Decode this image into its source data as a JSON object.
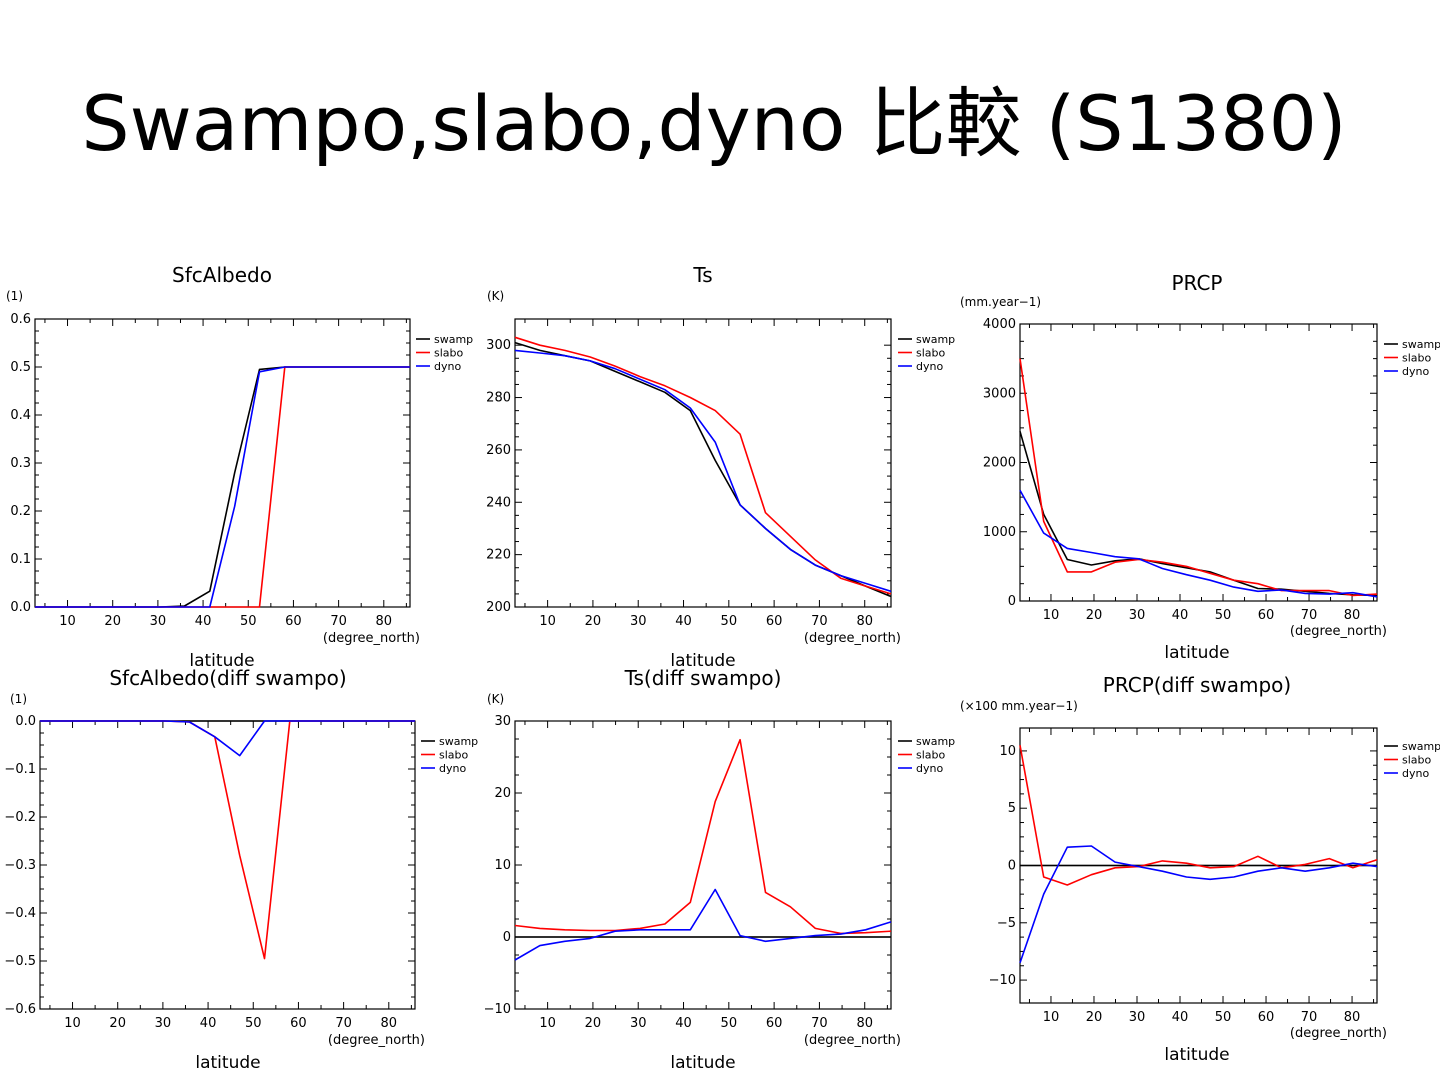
{
  "slide": {
    "title": "Swampo,slabo,dyno 比較 (S1380)"
  },
  "colors": {
    "swamp": "#000000",
    "slabo": "#ff0000",
    "dyno": "#0000ff"
  },
  "chart_data": [
    {
      "type": "line",
      "title": "SfcAlbedo",
      "unit": "(1)",
      "xlabel": "latitude",
      "xunit": "(degree_north)",
      "xlim": [
        2.8,
        85.8
      ],
      "ylim": [
        0,
        0.6
      ],
      "xticks": [
        10,
        20,
        30,
        40,
        50,
        60,
        70,
        80
      ],
      "yticks": [
        0,
        0.1,
        0.2,
        0.3,
        0.4,
        0.5,
        0.6
      ],
      "ytick_labels": [
        "0.0",
        "0.1",
        "0.2",
        "0.3",
        "0.4",
        "0.5",
        "0.6"
      ],
      "zero_line": false,
      "x": [
        2.8,
        8.3,
        13.8,
        19.4,
        24.9,
        30.4,
        35.9,
        41.5,
        47.0,
        52.5,
        58.1,
        63.6,
        69.1,
        74.7,
        80.2,
        85.8
      ],
      "series": [
        {
          "name": "swamp",
          "values": [
            0,
            0,
            0,
            0,
            0,
            0,
            0.002,
            0.033,
            0.28,
            0.495,
            0.5,
            0.5,
            0.5,
            0.5,
            0.5,
            0.5
          ]
        },
        {
          "name": "slabo",
          "values": [
            0,
            0,
            0,
            0,
            0,
            0,
            0,
            0,
            0,
            0,
            0.5,
            0.5,
            0.5,
            0.5,
            0.5,
            0.5
          ]
        },
        {
          "name": "dyno",
          "values": [
            0,
            0,
            0,
            0,
            0,
            0,
            0,
            0,
            0.21,
            0.49,
            0.5,
            0.5,
            0.5,
            0.5,
            0.5,
            0.5
          ]
        }
      ]
    },
    {
      "type": "line",
      "title": "Ts",
      "unit": "(K)",
      "xlabel": "latitude",
      "xunit": "(degree_north)",
      "xlim": [
        2.8,
        85.8
      ],
      "ylim": [
        200,
        310
      ],
      "xticks": [
        10,
        20,
        30,
        40,
        50,
        60,
        70,
        80
      ],
      "yticks": [
        200,
        220,
        240,
        260,
        280,
        300
      ],
      "ytick_labels": [
        "200",
        "220",
        "240",
        "260",
        "280",
        "300"
      ],
      "zero_line": false,
      "x": [
        2.8,
        8.3,
        13.8,
        19.4,
        24.9,
        30.4,
        35.9,
        41.5,
        47.0,
        52.5,
        58.1,
        63.6,
        69.1,
        74.7,
        80.2,
        85.8
      ],
      "series": [
        {
          "name": "swamp",
          "values": [
            301,
            298,
            296,
            294,
            290,
            286,
            282,
            275,
            256,
            239,
            230,
            222,
            216,
            212,
            208,
            204
          ]
        },
        {
          "name": "slabo",
          "values": [
            303,
            300,
            298,
            295.5,
            292,
            288,
            284.5,
            280,
            275,
            266,
            236,
            227,
            218,
            211,
            208,
            205
          ]
        },
        {
          "name": "dyno",
          "values": [
            298,
            297,
            296,
            294,
            291,
            287,
            283,
            276,
            263,
            239,
            230,
            222,
            216,
            212,
            209,
            206
          ]
        }
      ]
    },
    {
      "type": "line",
      "title": "PRCP",
      "unit": "(mm.year−1)",
      "xlabel": "latitude",
      "xunit": "(degree_north)",
      "xlim": [
        2.8,
        85.8
      ],
      "ylim": [
        0,
        4000
      ],
      "xticks": [
        10,
        20,
        30,
        40,
        50,
        60,
        70,
        80
      ],
      "yticks": [
        0,
        1000,
        2000,
        3000,
        4000
      ],
      "ytick_labels": [
        "0",
        "1000",
        "2000",
        "3000",
        "4000"
      ],
      "zero_line": false,
      "x": [
        2.8,
        8.3,
        13.8,
        19.4,
        24.9,
        30.4,
        35.9,
        41.5,
        47.0,
        52.5,
        58.1,
        63.6,
        69.1,
        74.7,
        80.2,
        85.8
      ],
      "series": [
        {
          "name": "swamp",
          "values": [
            2450,
            1250,
            600,
            520,
            580,
            610,
            540,
            480,
            420,
            300,
            180,
            170,
            140,
            110,
            90,
            80
          ]
        },
        {
          "name": "slabo",
          "values": [
            3500,
            1150,
            420,
            420,
            560,
            600,
            560,
            500,
            400,
            300,
            250,
            150,
            150,
            150,
            80,
            100
          ]
        },
        {
          "name": "dyno",
          "values": [
            1600,
            980,
            760,
            700,
            640,
            610,
            470,
            380,
            300,
            200,
            140,
            160,
            110,
            100,
            120,
            60
          ]
        }
      ]
    },
    {
      "type": "line",
      "title": "SfcAlbedo(diff swampo)",
      "unit": "(1)",
      "xlabel": "latitude",
      "xunit": "(degree_north)",
      "xlim": [
        2.8,
        85.8
      ],
      "ylim": [
        -0.6,
        0
      ],
      "xticks": [
        10,
        20,
        30,
        40,
        50,
        60,
        70,
        80
      ],
      "yticks": [
        -0.6,
        -0.5,
        -0.4,
        -0.3,
        -0.2,
        -0.1,
        0
      ],
      "ytick_labels": [
        "−0.6",
        "−0.5",
        "−0.4",
        "−0.3",
        "−0.2",
        "−0.1",
        "0.0"
      ],
      "zero_line": false,
      "x": [
        2.8,
        8.3,
        13.8,
        19.4,
        24.9,
        30.4,
        35.9,
        41.5,
        47.0,
        52.5,
        58.1,
        63.6,
        69.1,
        74.7,
        80.2,
        85.8
      ],
      "series": [
        {
          "name": "swamp",
          "values": [
            0,
            0,
            0,
            0,
            0,
            0,
            0,
            0,
            0,
            0,
            0,
            0,
            0,
            0,
            0,
            0
          ]
        },
        {
          "name": "slabo",
          "values": [
            0,
            0,
            0,
            0,
            0,
            0,
            -0.002,
            -0.033,
            -0.28,
            -0.495,
            0,
            0,
            0,
            0,
            0,
            0
          ]
        },
        {
          "name": "dyno",
          "values": [
            0,
            0,
            0,
            0,
            0,
            0,
            -0.002,
            -0.033,
            -0.072,
            0,
            0,
            0,
            0,
            0,
            0,
            0
          ]
        }
      ]
    },
    {
      "type": "line",
      "title": "Ts(diff swampo)",
      "unit": "(K)",
      "xlabel": "latitude",
      "xunit": "(degree_north)",
      "xlim": [
        2.8,
        85.8
      ],
      "ylim": [
        -10,
        30
      ],
      "xticks": [
        10,
        20,
        30,
        40,
        50,
        60,
        70,
        80
      ],
      "yticks": [
        -10,
        0,
        10,
        20,
        30
      ],
      "ytick_labels": [
        "−10",
        "0",
        "10",
        "20",
        "30"
      ],
      "zero_line": true,
      "x": [
        2.8,
        8.3,
        13.8,
        19.4,
        24.9,
        30.4,
        35.9,
        41.5,
        47.0,
        52.5,
        58.1,
        63.6,
        69.1,
        74.7,
        80.2,
        85.8
      ],
      "series": [
        {
          "name": "swamp",
          "values": [
            0,
            0,
            0,
            0,
            0,
            0,
            0,
            0,
            0,
            0,
            0,
            0,
            0,
            0,
            0,
            0
          ]
        },
        {
          "name": "slabo",
          "values": [
            1.6,
            1.2,
            1.0,
            0.9,
            0.9,
            1.2,
            1.8,
            4.8,
            18.8,
            27.4,
            6.2,
            4.2,
            1.2,
            0.5,
            0.6,
            0.8
          ]
        },
        {
          "name": "dyno",
          "values": [
            -3.2,
            -1.2,
            -0.6,
            -0.2,
            0.8,
            1.0,
            1.0,
            1.0,
            6.6,
            0.2,
            -0.6,
            -0.2,
            0.2,
            0.4,
            1.0,
            2.1
          ]
        }
      ]
    },
    {
      "type": "line",
      "title": "PRCP(diff swampo)",
      "unit": "(×100 mm.year−1)",
      "xlabel": "latitude",
      "xunit": "(degree_north)",
      "xlim": [
        2.8,
        85.8
      ],
      "ylim": [
        -12,
        12
      ],
      "xticks": [
        10,
        20,
        30,
        40,
        50,
        60,
        70,
        80
      ],
      "yticks": [
        -10,
        -5,
        0,
        5,
        10
      ],
      "ytick_labels": [
        "−10",
        "−5",
        "0",
        "5",
        "10"
      ],
      "zero_line": true,
      "x": [
        2.8,
        8.3,
        13.8,
        19.4,
        24.9,
        30.4,
        35.9,
        41.5,
        47.0,
        52.5,
        58.1,
        63.6,
        69.1,
        74.7,
        80.2,
        85.8
      ],
      "series": [
        {
          "name": "swamp",
          "values": [
            0,
            0,
            0,
            0,
            0,
            0,
            0,
            0,
            0,
            0,
            0,
            0,
            0,
            0,
            0,
            0
          ]
        },
        {
          "name": "slabo",
          "values": [
            10.5,
            -1.0,
            -1.7,
            -0.8,
            -0.2,
            -0.1,
            0.4,
            0.2,
            -0.2,
            -0.1,
            0.8,
            -0.2,
            0.1,
            0.6,
            -0.2,
            0.5
          ]
        },
        {
          "name": "dyno",
          "values": [
            -8.5,
            -2.5,
            1.6,
            1.7,
            0.3,
            -0.1,
            -0.5,
            -1.0,
            -1.2,
            -1.0,
            -0.5,
            -0.2,
            -0.5,
            -0.2,
            0.2,
            -0.1
          ]
        }
      ]
    }
  ]
}
